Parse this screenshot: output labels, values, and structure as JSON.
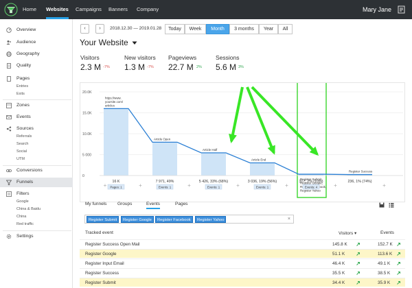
{
  "topbar": {
    "nav": [
      "Home",
      "Websites",
      "Campaigns",
      "Banners",
      "Company"
    ],
    "active": "Websites",
    "user_name": "Mary Jane"
  },
  "sidebar": {
    "items": [
      {
        "label": "Overview",
        "icon": "gauge-icon"
      },
      {
        "label": "Audience",
        "icon": "people-icon"
      },
      {
        "label": "Geography",
        "icon": "globe-icon"
      },
      {
        "label": "Quality",
        "icon": "document-icon"
      },
      {
        "label": "Pages",
        "icon": "page-icon"
      },
      {
        "label": "Zones",
        "icon": "zones-icon"
      },
      {
        "label": "Events",
        "icon": "envelope-icon"
      },
      {
        "label": "Sources",
        "icon": "share-icon"
      },
      {
        "label": "Conversions",
        "icon": "chain-icon"
      },
      {
        "label": "Funnels",
        "icon": "funnel-icon"
      },
      {
        "label": "Filters",
        "icon": "filter-icon"
      },
      {
        "label": "Settings",
        "icon": "gear-icon"
      }
    ],
    "pages_sub": [
      "Entries",
      "Exits"
    ],
    "sources_sub": [
      "Referrals",
      "Search",
      "Social",
      "UTM"
    ],
    "filters_sub": [
      "Google",
      "China & Baidu",
      "China",
      "Red traffic"
    ],
    "active": "Funnels"
  },
  "toolbar": {
    "date_range": "2018.12.30 — 2019.01.28",
    "periods": [
      "Today",
      "Week",
      "Month",
      "3 months",
      "Year",
      "All"
    ],
    "active_period": "Month"
  },
  "page_title": "Your Website",
  "metrics": [
    {
      "label": "Visitors",
      "value": "2.3 M",
      "delta": "-7%",
      "trend": "down"
    },
    {
      "label": "New visitors",
      "value": "1.3 M",
      "delta": "-7%",
      "trend": "down"
    },
    {
      "label": "Pageviews",
      "value": "22.7 M",
      "delta": "2%",
      "trend": "up"
    },
    {
      "label": "Sessions",
      "value": "5.6 M",
      "delta": "3%",
      "trend": "up"
    }
  ],
  "chart_data": {
    "type": "area",
    "ylim": [
      0,
      20000
    ],
    "yticks": [
      "20.0K",
      "15.0K",
      "10.0K",
      "5 000",
      "0"
    ],
    "steps": [
      {
        "name": "https://www.yoursite.com/articles",
        "value": 16000,
        "value_label": "16 K",
        "badge": "Pages: 1"
      },
      {
        "name": "Article Open",
        "value": 7971,
        "value_label": "7 971, 49%",
        "badge": "Events: 1"
      },
      {
        "name": "Article Half",
        "value": 5426,
        "value_label": "5 426, 33% (68%)",
        "badge": "Events: 1"
      },
      {
        "name": "Article End",
        "value": 3036,
        "value_label": "3 036, 19% (56%)",
        "badge": "Events: 1"
      },
      {
        "name": "Register Submit, Register Google, Register Facebook, Register Yahoo",
        "value": 317,
        "value_label": "317, 2% (10%)",
        "badge": "Events: 4"
      },
      {
        "name": "Register Success",
        "value": 236,
        "value_label": "236, 1% (74%)",
        "badge": ""
      }
    ],
    "highlight_step": 4,
    "colors": {
      "bar": "#cfe4f7",
      "line": "#2a7fd4",
      "highlight_border": "#39d62c",
      "arrow": "#39e626"
    }
  },
  "bottom_tabs": [
    "My funnels",
    "Groups",
    "Events",
    "Pages"
  ],
  "active_bottom_tab": "Events",
  "filter_chips": [
    "Register Submit",
    "Register Google",
    "Register Facebook",
    "Register Yahoo"
  ],
  "table": {
    "columns": [
      "Tracked event",
      "Visitors",
      "Events"
    ],
    "rows": [
      {
        "name": "Register Success Open Mail",
        "visitors": "145.8 K",
        "events": "152.7 K",
        "hl": false
      },
      {
        "name": "Register Google",
        "visitors": "51.1 K",
        "events": "113.6 K",
        "hl": true
      },
      {
        "name": "Register Input Email",
        "visitors": "46.4 K",
        "events": "49.1 K",
        "hl": false
      },
      {
        "name": "Register Success",
        "visitors": "35.5 K",
        "events": "38.5 K",
        "hl": false
      },
      {
        "name": "Register Submit",
        "visitors": "34.4 K",
        "events": "35.9 K",
        "hl": true
      }
    ]
  }
}
